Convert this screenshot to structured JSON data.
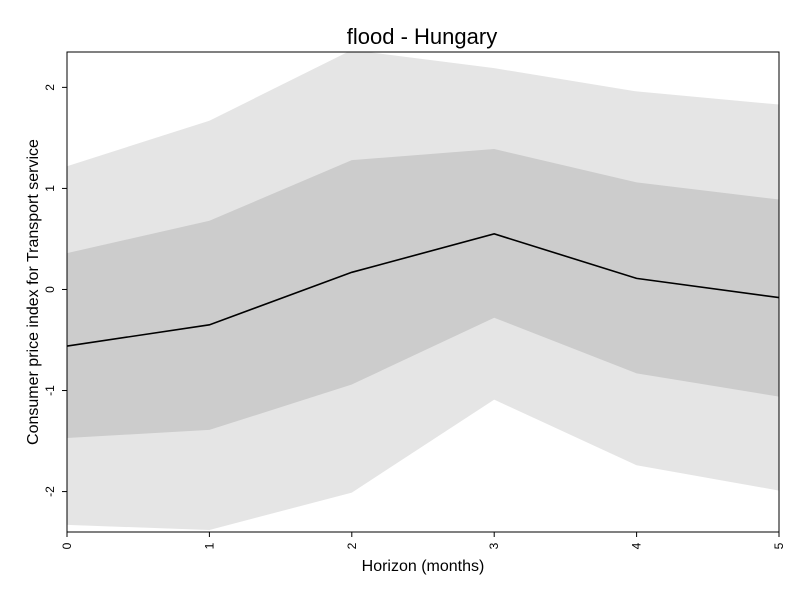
{
  "chart_data": {
    "type": "line",
    "title": "flood - Hungary",
    "xlabel": "Horizon (months)",
    "ylabel": "Consumer price index for Transport service",
    "x": [
      0,
      1,
      2,
      3,
      4,
      5
    ],
    "xlim": [
      0,
      5
    ],
    "ylim": [
      -2.4,
      2.35
    ],
    "xticks": [
      "0",
      "1",
      "2",
      "3",
      "4",
      "5"
    ],
    "yticks": [
      -2,
      -1,
      0,
      1,
      2
    ],
    "ytick_labels": [
      "-2",
      "-1",
      "0",
      "1",
      "2"
    ],
    "grid": false,
    "legend": "none",
    "series": [
      {
        "values": [
          -0.56,
          -0.35,
          0.17,
          0.55,
          0.11,
          -0.08
        ]
      }
    ],
    "bands": [
      {
        "lower": [
          -2.33,
          -2.38,
          -2.01,
          -1.09,
          -1.74,
          -1.99
        ],
        "upper": [
          1.22,
          1.67,
          2.37,
          2.19,
          1.96,
          1.83
        ],
        "color": "#e5e5e5"
      },
      {
        "lower": [
          -1.47,
          -1.39,
          -0.94,
          -0.28,
          -0.83,
          -1.06
        ],
        "upper": [
          0.36,
          0.68,
          1.28,
          1.39,
          1.06,
          0.89
        ],
        "color": "#cccccc"
      }
    ],
    "line_color": "#000000"
  }
}
